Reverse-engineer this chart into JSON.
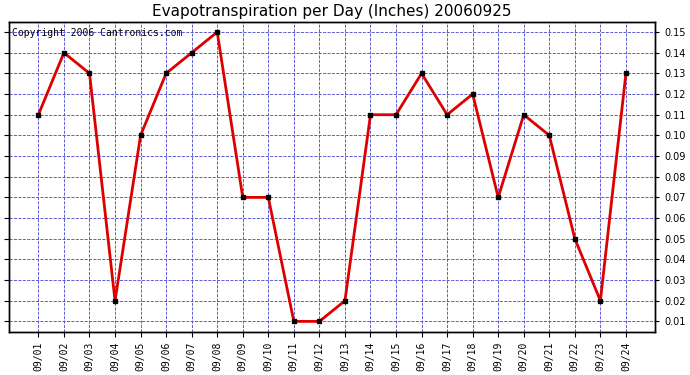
{
  "title": "Evapotranspiration per Day (Inches) 20060925",
  "copyright": "Copyright 2006 Cantronics.com",
  "dates": [
    "09/01",
    "09/02",
    "09/03",
    "09/04",
    "09/05",
    "09/06",
    "09/07",
    "09/08",
    "09/09",
    "09/10",
    "09/11",
    "09/12",
    "09/13",
    "09/14",
    "09/15",
    "09/16",
    "09/17",
    "09/18",
    "09/19",
    "09/20",
    "09/21",
    "09/22",
    "09/23",
    "09/24"
  ],
  "values": [
    0.11,
    0.14,
    0.13,
    0.02,
    0.1,
    0.13,
    0.14,
    0.15,
    0.07,
    0.07,
    0.01,
    0.01,
    0.02,
    0.11,
    0.11,
    0.13,
    0.11,
    0.12,
    0.07,
    0.11,
    0.1,
    0.05,
    0.02,
    0.13
  ],
  "line_color": "#dd0000",
  "marker_color": "#000000",
  "bg_color": "#ffffff",
  "plot_bg_color": "#ffffff",
  "grid_color": "#4444cc",
  "border_color": "#000000",
  "title_color": "#000000",
  "copyright_color": "#000000",
  "ylim_min": 0.005,
  "ylim_max": 0.155,
  "yticks": [
    0.01,
    0.02,
    0.03,
    0.04,
    0.05,
    0.06,
    0.07,
    0.08,
    0.09,
    0.1,
    0.11,
    0.12,
    0.13,
    0.14,
    0.15
  ],
  "title_fontsize": 11,
  "tick_fontsize": 7,
  "copyright_fontsize": 7,
  "line_width": 2.0,
  "marker_size": 3
}
